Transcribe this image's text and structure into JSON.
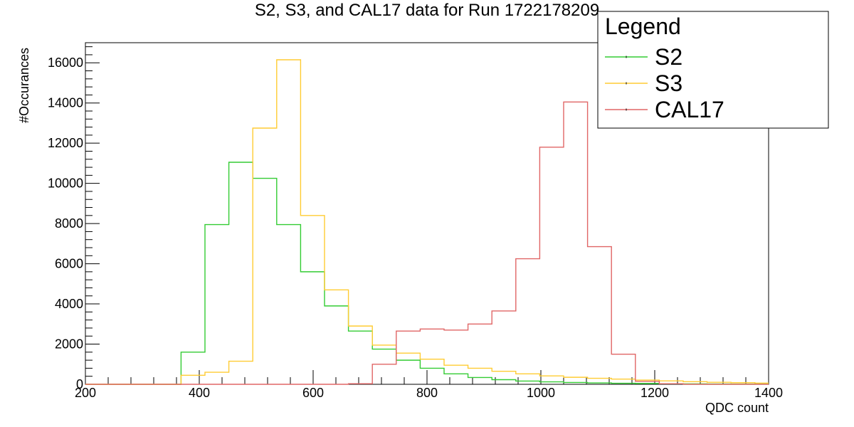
{
  "chart_data": {
    "type": "line",
    "title": "S2, S3, and CAL17 data for Run 1722178209",
    "xlabel": "QDC count",
    "ylabel": "#Occurances",
    "xlim": [
      200,
      1400
    ],
    "ylim": [
      0,
      17000
    ],
    "x_ticks": [
      "200",
      "400",
      "600",
      "800",
      "1000",
      "1200",
      "1400"
    ],
    "y_ticks": [
      "0",
      "2000",
      "4000",
      "6000",
      "8000",
      "10000",
      "12000",
      "14000",
      "16000"
    ],
    "bin_edges": [
      200,
      242,
      284,
      326,
      368,
      410,
      452,
      494,
      536,
      578,
      620,
      662,
      704,
      746,
      788,
      830,
      872,
      914,
      956,
      998,
      1040,
      1082,
      1124,
      1166,
      1208,
      1250,
      1292,
      1334,
      1376,
      1400
    ],
    "grid": false,
    "legend": {
      "title": "Legend",
      "position": "top-right"
    },
    "series": [
      {
        "name": "S2",
        "color": "#33cc33",
        "values": [
          0,
          0,
          0,
          0,
          1600,
          7950,
          11050,
          10250,
          7950,
          5600,
          3900,
          2650,
          1750,
          1200,
          800,
          520,
          340,
          230,
          160,
          120,
          90,
          70,
          50,
          40,
          30,
          20,
          15,
          10,
          8
        ]
      },
      {
        "name": "S3",
        "color": "#ffcc33",
        "values": [
          0,
          0,
          0,
          0,
          450,
          600,
          1150,
          12750,
          16150,
          8400,
          4700,
          2900,
          1950,
          1550,
          1250,
          950,
          800,
          650,
          520,
          420,
          350,
          300,
          260,
          210,
          170,
          130,
          100,
          80,
          60
        ]
      },
      {
        "name": "CAL17",
        "color": "#e06666",
        "values": [
          0,
          0,
          0,
          0,
          0,
          0,
          0,
          0,
          0,
          0,
          0,
          30,
          1000,
          2650,
          2750,
          2700,
          3000,
          3650,
          6250,
          11800,
          14050,
          6850,
          1500,
          150,
          30,
          0,
          0,
          0,
          0
        ]
      }
    ]
  }
}
